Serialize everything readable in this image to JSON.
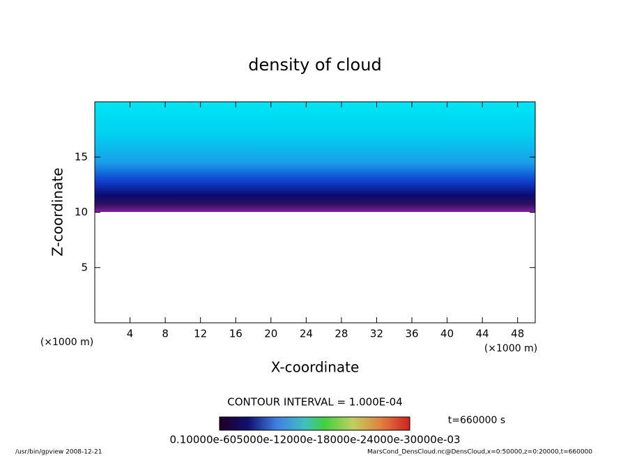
{
  "chart_data": {
    "type": "contour",
    "title": "density of cloud",
    "xlabel": "X-coordinate",
    "ylabel": "Z-coordinate",
    "x_unit_label": "(×1000 m)",
    "y_unit_label": "(×1000 m)",
    "xlim": [
      0,
      50
    ],
    "xticks": [
      4,
      8,
      12,
      16,
      20,
      24,
      28,
      32,
      36,
      40,
      44,
      48
    ],
    "ylim": [
      0,
      20
    ],
    "yticks": [
      5,
      10,
      15
    ],
    "contour_interval": "CONTOUR INTERVAL = 1.000E-04",
    "time_label": "t=660000 s",
    "colorbar_labels": "0.10000e-605000e-12000e-18000e-24000e-30000e-03",
    "footer_left": "/usr/bin/gpview   2008-12-21",
    "footer_right": "MarsCond_DensCloud.nc@DensCloud,x=0:50000,z=0:20000,t=660000"
  }
}
